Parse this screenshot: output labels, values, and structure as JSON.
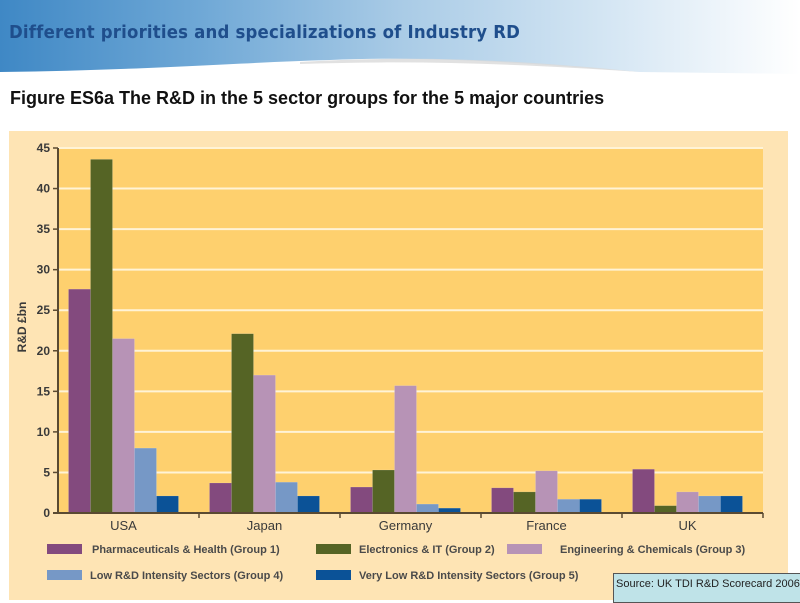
{
  "slide": {
    "banner_title": "Different priorities and specializations of Industry RD",
    "figure_title": "Figure ES6a The R&D in the 5 sector groups for the 5 major countries",
    "source_note": "Source: UK TDI R&D Scorecard 2006"
  },
  "colors": {
    "banner_text": "#1f4e8c",
    "panel_bg": "#fee4b4",
    "plot_bg": "#fed06e",
    "gridline": "#fff3d6",
    "axis": "#5a4a32"
  },
  "chart_data": {
    "type": "bar",
    "title": "Figure ES6a The R&D in the 5 sector groups for the 5 major countries",
    "xlabel": "",
    "ylabel": "R&D £bn",
    "ylim": [
      0,
      45
    ],
    "yticks": [
      0,
      5,
      10,
      15,
      20,
      25,
      30,
      35,
      40,
      45
    ],
    "grid": true,
    "legend_position": "bottom",
    "categories": [
      "USA",
      "Japan",
      "Germany",
      "France",
      "UK"
    ],
    "series": [
      {
        "name": "Pharmaceuticals & Health (Group 1)",
        "color": "#834a7e",
        "values": [
          27.6,
          3.7,
          3.2,
          3.1,
          5.4
        ]
      },
      {
        "name": "Electronics & IT (Group 2)",
        "color": "#556425",
        "values": [
          43.6,
          22.1,
          5.3,
          2.6,
          0.9
        ]
      },
      {
        "name": "Engineering & Chemicals (Group 3)",
        "color": "#b793b6",
        "values": [
          21.5,
          17.0,
          15.7,
          5.2,
          2.6
        ]
      },
      {
        "name": "Low R&D Intensity Sectors (Group 4)",
        "color": "#7698c6",
        "values": [
          8.0,
          3.8,
          1.1,
          1.7,
          2.1
        ]
      },
      {
        "name": "Very Low R&D Intensity Sectors (Group 5)",
        "color": "#0b5297",
        "values": [
          2.1,
          2.1,
          0.6,
          1.7,
          2.1
        ]
      }
    ]
  }
}
